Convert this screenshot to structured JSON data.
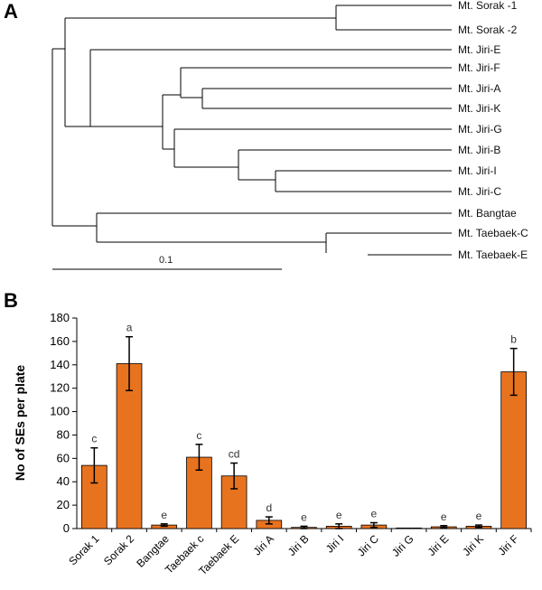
{
  "panel_a": {
    "label": "A",
    "scale_label": "0.1",
    "leaves": [
      "Mt. Sorak -1",
      "Mt. Sorak -2",
      "Mt. Jiri-E",
      "Mt. Jiri-F",
      "Mt. Jiri-A",
      "Mt. Jiri-K",
      "Mt. Jiri-G",
      "Mt. Jiri-B",
      "Mt. Jiri-I",
      "Mt. Jiri-C",
      "Mt. Bangtae",
      "Mt. Taebaek-C",
      "Mt. Taebaek-E"
    ]
  },
  "panel_b": {
    "label": "B"
  },
  "chart_data": {
    "type": "bar",
    "title": "",
    "xlabel": "",
    "ylabel": "No of SEs per plate",
    "ylim": [
      0,
      180
    ],
    "yticks": [
      "0",
      "20",
      "40",
      "60",
      "80",
      "100",
      "120",
      "140",
      "160",
      "180"
    ],
    "categories": [
      "Sorak 1",
      "Sorak 2",
      "Bangtae",
      "Taebaek c",
      "Taebaek E",
      "Jiri A",
      "Jiri B",
      "Jiri I",
      "Jiri C",
      "Jiri G",
      "Jiri E",
      "Jiri K",
      "Jiri F"
    ],
    "values": [
      54,
      141,
      3,
      61,
      45,
      7,
      1,
      2,
      3,
      0.5,
      1.5,
      2,
      134
    ],
    "errors": [
      15,
      23,
      1,
      11,
      11,
      3,
      1,
      2,
      2,
      0.3,
      1,
      1,
      20
    ],
    "significance": [
      "c",
      "a",
      "e",
      "c",
      "cd",
      "d",
      "e",
      "e",
      "e",
      "",
      "e",
      "e",
      "b"
    ],
    "bar_color": "#E8731F"
  }
}
